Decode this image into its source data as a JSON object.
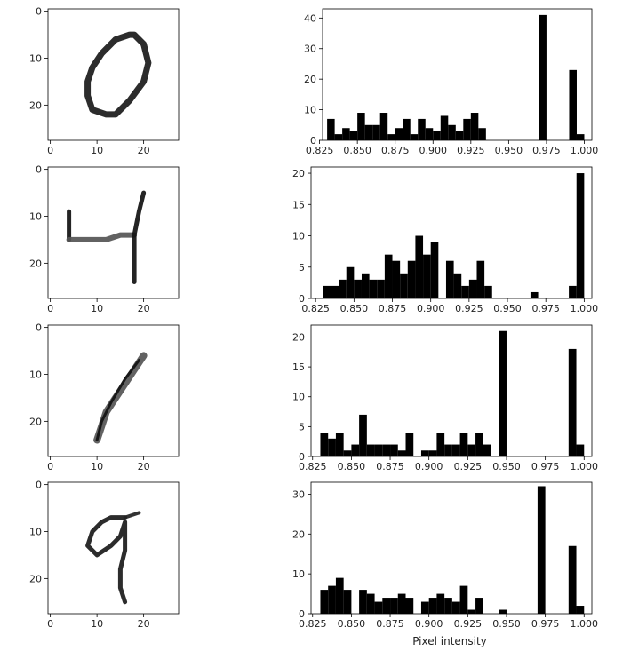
{
  "figure": {
    "xlabel": "Pixel intensity"
  },
  "images": [
    {
      "digit": "0",
      "xticks": [
        0,
        10,
        20
      ],
      "yticks": [
        0,
        10,
        20
      ],
      "xlim": [
        0,
        27
      ],
      "ylim": [
        0,
        27
      ]
    },
    {
      "digit": "4",
      "xticks": [
        0,
        10,
        20
      ],
      "yticks": [
        0,
        10,
        20
      ],
      "xlim": [
        0,
        27
      ],
      "ylim": [
        0,
        27
      ]
    },
    {
      "digit": "1",
      "xticks": [
        0,
        10,
        20
      ],
      "yticks": [
        0,
        10,
        20
      ],
      "xlim": [
        0,
        27
      ],
      "ylim": [
        0,
        27
      ]
    },
    {
      "digit": "9",
      "xticks": [
        0,
        10,
        20
      ],
      "yticks": [
        0,
        10,
        20
      ],
      "xlim": [
        0,
        27
      ],
      "ylim": [
        0,
        27
      ]
    }
  ],
  "chart_data": [
    {
      "type": "bar",
      "bar_color": "#000000",
      "bin_width": 0.005,
      "xlim": [
        0.827,
        1.005
      ],
      "ylim": [
        0,
        43
      ],
      "xticks": [
        "0.825",
        "0.850",
        "0.875",
        "0.900",
        "0.925",
        "0.950",
        "0.975",
        "1.000"
      ],
      "yticks": [
        0,
        10,
        20,
        30,
        40
      ],
      "bins": [
        {
          "x": 0.83,
          "y": 7
        },
        {
          "x": 0.835,
          "y": 2
        },
        {
          "x": 0.84,
          "y": 4
        },
        {
          "x": 0.845,
          "y": 3
        },
        {
          "x": 0.85,
          "y": 9
        },
        {
          "x": 0.855,
          "y": 5
        },
        {
          "x": 0.86,
          "y": 5
        },
        {
          "x": 0.865,
          "y": 9
        },
        {
          "x": 0.87,
          "y": 2
        },
        {
          "x": 0.875,
          "y": 4
        },
        {
          "x": 0.88,
          "y": 7
        },
        {
          "x": 0.885,
          "y": 2
        },
        {
          "x": 0.89,
          "y": 7
        },
        {
          "x": 0.895,
          "y": 4
        },
        {
          "x": 0.9,
          "y": 3
        },
        {
          "x": 0.905,
          "y": 8
        },
        {
          "x": 0.91,
          "y": 5
        },
        {
          "x": 0.915,
          "y": 3
        },
        {
          "x": 0.92,
          "y": 7
        },
        {
          "x": 0.925,
          "y": 9
        },
        {
          "x": 0.93,
          "y": 4
        },
        {
          "x": 0.97,
          "y": 41
        },
        {
          "x": 0.99,
          "y": 23
        },
        {
          "x": 0.995,
          "y": 2
        }
      ]
    },
    {
      "type": "bar",
      "bar_color": "#000000",
      "bin_width": 0.005,
      "xlim": [
        0.822,
        1.005
      ],
      "ylim": [
        0,
        21
      ],
      "xticks": [
        "0.825",
        "0.850",
        "0.875",
        "0.900",
        "0.925",
        "0.950",
        "0.975",
        "1.000"
      ],
      "yticks": [
        0,
        5,
        10,
        15,
        20
      ],
      "bins": [
        {
          "x": 0.83,
          "y": 2
        },
        {
          "x": 0.835,
          "y": 2
        },
        {
          "x": 0.84,
          "y": 3
        },
        {
          "x": 0.845,
          "y": 5
        },
        {
          "x": 0.85,
          "y": 3
        },
        {
          "x": 0.855,
          "y": 4
        },
        {
          "x": 0.86,
          "y": 3
        },
        {
          "x": 0.865,
          "y": 3
        },
        {
          "x": 0.87,
          "y": 7
        },
        {
          "x": 0.875,
          "y": 6
        },
        {
          "x": 0.88,
          "y": 4
        },
        {
          "x": 0.885,
          "y": 6
        },
        {
          "x": 0.89,
          "y": 10
        },
        {
          "x": 0.895,
          "y": 7
        },
        {
          "x": 0.9,
          "y": 9
        },
        {
          "x": 0.905,
          "y": 0
        },
        {
          "x": 0.91,
          "y": 6
        },
        {
          "x": 0.915,
          "y": 4
        },
        {
          "x": 0.92,
          "y": 2
        },
        {
          "x": 0.925,
          "y": 3
        },
        {
          "x": 0.93,
          "y": 6
        },
        {
          "x": 0.935,
          "y": 2
        },
        {
          "x": 0.965,
          "y": 1
        },
        {
          "x": 0.99,
          "y": 2
        },
        {
          "x": 0.995,
          "y": 20
        }
      ]
    },
    {
      "type": "bar",
      "bar_color": "#000000",
      "bin_width": 0.005,
      "xlim": [
        0.824,
        1.005
      ],
      "ylim": [
        0,
        22
      ],
      "xticks": [
        "0.825",
        "0.850",
        "0.875",
        "0.900",
        "0.925",
        "0.950",
        "0.975",
        "1.000"
      ],
      "yticks": [
        0,
        5,
        10,
        15,
        20
      ],
      "bins": [
        {
          "x": 0.83,
          "y": 4
        },
        {
          "x": 0.835,
          "y": 3
        },
        {
          "x": 0.84,
          "y": 4
        },
        {
          "x": 0.845,
          "y": 1
        },
        {
          "x": 0.85,
          "y": 2
        },
        {
          "x": 0.855,
          "y": 7
        },
        {
          "x": 0.86,
          "y": 2
        },
        {
          "x": 0.865,
          "y": 2
        },
        {
          "x": 0.87,
          "y": 2
        },
        {
          "x": 0.875,
          "y": 2
        },
        {
          "x": 0.88,
          "y": 1
        },
        {
          "x": 0.885,
          "y": 4
        },
        {
          "x": 0.895,
          "y": 1
        },
        {
          "x": 0.9,
          "y": 1
        },
        {
          "x": 0.905,
          "y": 4
        },
        {
          "x": 0.91,
          "y": 2
        },
        {
          "x": 0.915,
          "y": 2
        },
        {
          "x": 0.92,
          "y": 4
        },
        {
          "x": 0.925,
          "y": 2
        },
        {
          "x": 0.93,
          "y": 4
        },
        {
          "x": 0.935,
          "y": 2
        },
        {
          "x": 0.945,
          "y": 21
        },
        {
          "x": 0.99,
          "y": 18
        },
        {
          "x": 0.995,
          "y": 2
        }
      ]
    },
    {
      "type": "bar",
      "bar_color": "#000000",
      "bin_width": 0.005,
      "xlim": [
        0.824,
        1.005
      ],
      "ylim": [
        0,
        33
      ],
      "xticks": [
        "0.825",
        "0.850",
        "0.875",
        "0.900",
        "0.925",
        "0.950",
        "0.975",
        "1.000"
      ],
      "yticks": [
        0,
        10,
        20,
        30
      ],
      "bins": [
        {
          "x": 0.83,
          "y": 6
        },
        {
          "x": 0.835,
          "y": 7
        },
        {
          "x": 0.84,
          "y": 9
        },
        {
          "x": 0.845,
          "y": 6
        },
        {
          "x": 0.855,
          "y": 6
        },
        {
          "x": 0.86,
          "y": 5
        },
        {
          "x": 0.865,
          "y": 3
        },
        {
          "x": 0.87,
          "y": 4
        },
        {
          "x": 0.875,
          "y": 4
        },
        {
          "x": 0.88,
          "y": 5
        },
        {
          "x": 0.885,
          "y": 4
        },
        {
          "x": 0.895,
          "y": 3
        },
        {
          "x": 0.9,
          "y": 4
        },
        {
          "x": 0.905,
          "y": 5
        },
        {
          "x": 0.91,
          "y": 4
        },
        {
          "x": 0.915,
          "y": 3
        },
        {
          "x": 0.92,
          "y": 7
        },
        {
          "x": 0.925,
          "y": 1
        },
        {
          "x": 0.93,
          "y": 4
        },
        {
          "x": 0.945,
          "y": 1
        },
        {
          "x": 0.97,
          "y": 32
        },
        {
          "x": 0.99,
          "y": 17
        },
        {
          "x": 0.995,
          "y": 2
        }
      ]
    }
  ]
}
